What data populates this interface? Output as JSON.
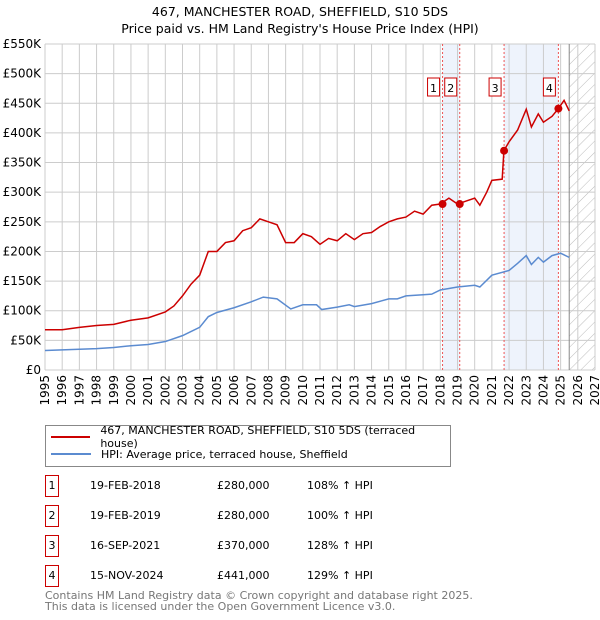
{
  "chart_data": {
    "type": "line",
    "title": "467, MANCHESTER ROAD, SHEFFIELD, S10 5DS",
    "subtitle": "Price paid vs. HM Land Registry's House Price Index (HPI)",
    "xlim": [
      1995,
      2027
    ],
    "ylim": [
      0,
      550000
    ],
    "x_ticks": [
      "1995",
      "1996",
      "1997",
      "1998",
      "1999",
      "2000",
      "2001",
      "2002",
      "2003",
      "2004",
      "2005",
      "2006",
      "2007",
      "2008",
      "2009",
      "2010",
      "2011",
      "2012",
      "2013",
      "2014",
      "2015",
      "2016",
      "2017",
      "2018",
      "2019",
      "2020",
      "2021",
      "2022",
      "2023",
      "2024",
      "2025",
      "2026",
      "2027"
    ],
    "y_ticks": [
      "£0",
      "£50K",
      "£100K",
      "£150K",
      "£200K",
      "£250K",
      "£300K",
      "£350K",
      "£400K",
      "£450K",
      "£500K",
      "£550K"
    ],
    "grid": true,
    "series": [
      {
        "name": "467, MANCHESTER ROAD, SHEFFIELD, S10 5DS (terraced house)",
        "color": "#cc0000",
        "points": [
          [
            1995,
            68
          ],
          [
            1996,
            68
          ],
          [
            1997,
            72
          ],
          [
            1998,
            75
          ],
          [
            1999,
            77
          ],
          [
            2000,
            84
          ],
          [
            2001,
            88
          ],
          [
            2002,
            98
          ],
          [
            2002.5,
            108
          ],
          [
            2003,
            125
          ],
          [
            2003.5,
            145
          ],
          [
            2004,
            160
          ],
          [
            2004.5,
            200
          ],
          [
            2005,
            200
          ],
          [
            2005.5,
            215
          ],
          [
            2006,
            218
          ],
          [
            2006.5,
            235
          ],
          [
            2007,
            240
          ],
          [
            2007.5,
            255
          ],
          [
            2008,
            250
          ],
          [
            2008.5,
            245
          ],
          [
            2009,
            215
          ],
          [
            2009.5,
            215
          ],
          [
            2010,
            230
          ],
          [
            2010.5,
            225
          ],
          [
            2011,
            212
          ],
          [
            2011.5,
            222
          ],
          [
            2012,
            218
          ],
          [
            2012.5,
            230
          ],
          [
            2013,
            220
          ],
          [
            2013.5,
            230
          ],
          [
            2014,
            232
          ],
          [
            2014.5,
            242
          ],
          [
            2015,
            250
          ],
          [
            2015.5,
            255
          ],
          [
            2016,
            258
          ],
          [
            2016.5,
            268
          ],
          [
            2017,
            263
          ],
          [
            2017.5,
            278
          ],
          [
            2018,
            280
          ],
          [
            2018.5,
            290
          ],
          [
            2019,
            280
          ],
          [
            2019.5,
            285
          ],
          [
            2020,
            290
          ],
          [
            2020.3,
            278
          ],
          [
            2020.7,
            300
          ],
          [
            2021,
            320
          ],
          [
            2021.6,
            322
          ],
          [
            2021.7,
            370
          ],
          [
            2022,
            385
          ],
          [
            2022.5,
            405
          ],
          [
            2023,
            440
          ],
          [
            2023.3,
            410
          ],
          [
            2023.7,
            432
          ],
          [
            2024,
            418
          ],
          [
            2024.5,
            428
          ],
          [
            2024.87,
            441
          ],
          [
            2025.2,
            455
          ],
          [
            2025.5,
            437
          ]
        ]
      },
      {
        "name": "HPI: Average price, terraced house, Sheffield",
        "color": "#5b8bd0",
        "points": [
          [
            1995,
            33
          ],
          [
            1996,
            34
          ],
          [
            1997,
            35
          ],
          [
            1998,
            36
          ],
          [
            1999,
            38
          ],
          [
            2000,
            41
          ],
          [
            2001,
            43
          ],
          [
            2002,
            48
          ],
          [
            2003,
            58
          ],
          [
            2004,
            72
          ],
          [
            2004.5,
            90
          ],
          [
            2005,
            97
          ],
          [
            2006,
            105
          ],
          [
            2007,
            115
          ],
          [
            2007.7,
            123
          ],
          [
            2008.5,
            120
          ],
          [
            2009.3,
            103
          ],
          [
            2010,
            110
          ],
          [
            2010.8,
            110
          ],
          [
            2011.1,
            102
          ],
          [
            2012,
            106
          ],
          [
            2012.7,
            110
          ],
          [
            2013,
            107
          ],
          [
            2014,
            112
          ],
          [
            2015,
            120
          ],
          [
            2015.5,
            120
          ],
          [
            2016,
            125
          ],
          [
            2017,
            127
          ],
          [
            2017.5,
            128
          ],
          [
            2018,
            135
          ],
          [
            2019,
            140
          ],
          [
            2020,
            143
          ],
          [
            2020.3,
            140
          ],
          [
            2021,
            160
          ],
          [
            2022,
            168
          ],
          [
            2022.5,
            180
          ],
          [
            2023,
            193
          ],
          [
            2023.3,
            178
          ],
          [
            2023.7,
            190
          ],
          [
            2024,
            182
          ],
          [
            2024.5,
            193
          ],
          [
            2025,
            197
          ],
          [
            2025.5,
            190
          ]
        ]
      }
    ],
    "sales": [
      {
        "n": "1",
        "x": 2018.13,
        "y": 280,
        "date": "19-FEB-2018",
        "price": "£280,000",
        "hpi": "108% ↑ HPI"
      },
      {
        "n": "2",
        "x": 2019.13,
        "y": 280,
        "date": "19-FEB-2019",
        "price": "£280,000",
        "hpi": "100% ↑ HPI"
      },
      {
        "n": "3",
        "x": 2021.71,
        "y": 370,
        "date": "16-SEP-2021",
        "price": "£370,000",
        "hpi": "128% ↑ HPI"
      },
      {
        "n": "4",
        "x": 2024.87,
        "y": 441,
        "date": "15-NOV-2024",
        "price": "£441,000",
        "hpi": "129% ↑ HPI"
      }
    ],
    "shaded": [
      [
        2018.13,
        2019.13
      ],
      [
        2021.71,
        2024.87
      ]
    ],
    "forecast_from": 2025.5
  },
  "footer": {
    "line1": "Contains HM Land Registry data © Crown copyright and database right 2025.",
    "line2": "This data is licensed under the Open Government Licence v3.0."
  }
}
